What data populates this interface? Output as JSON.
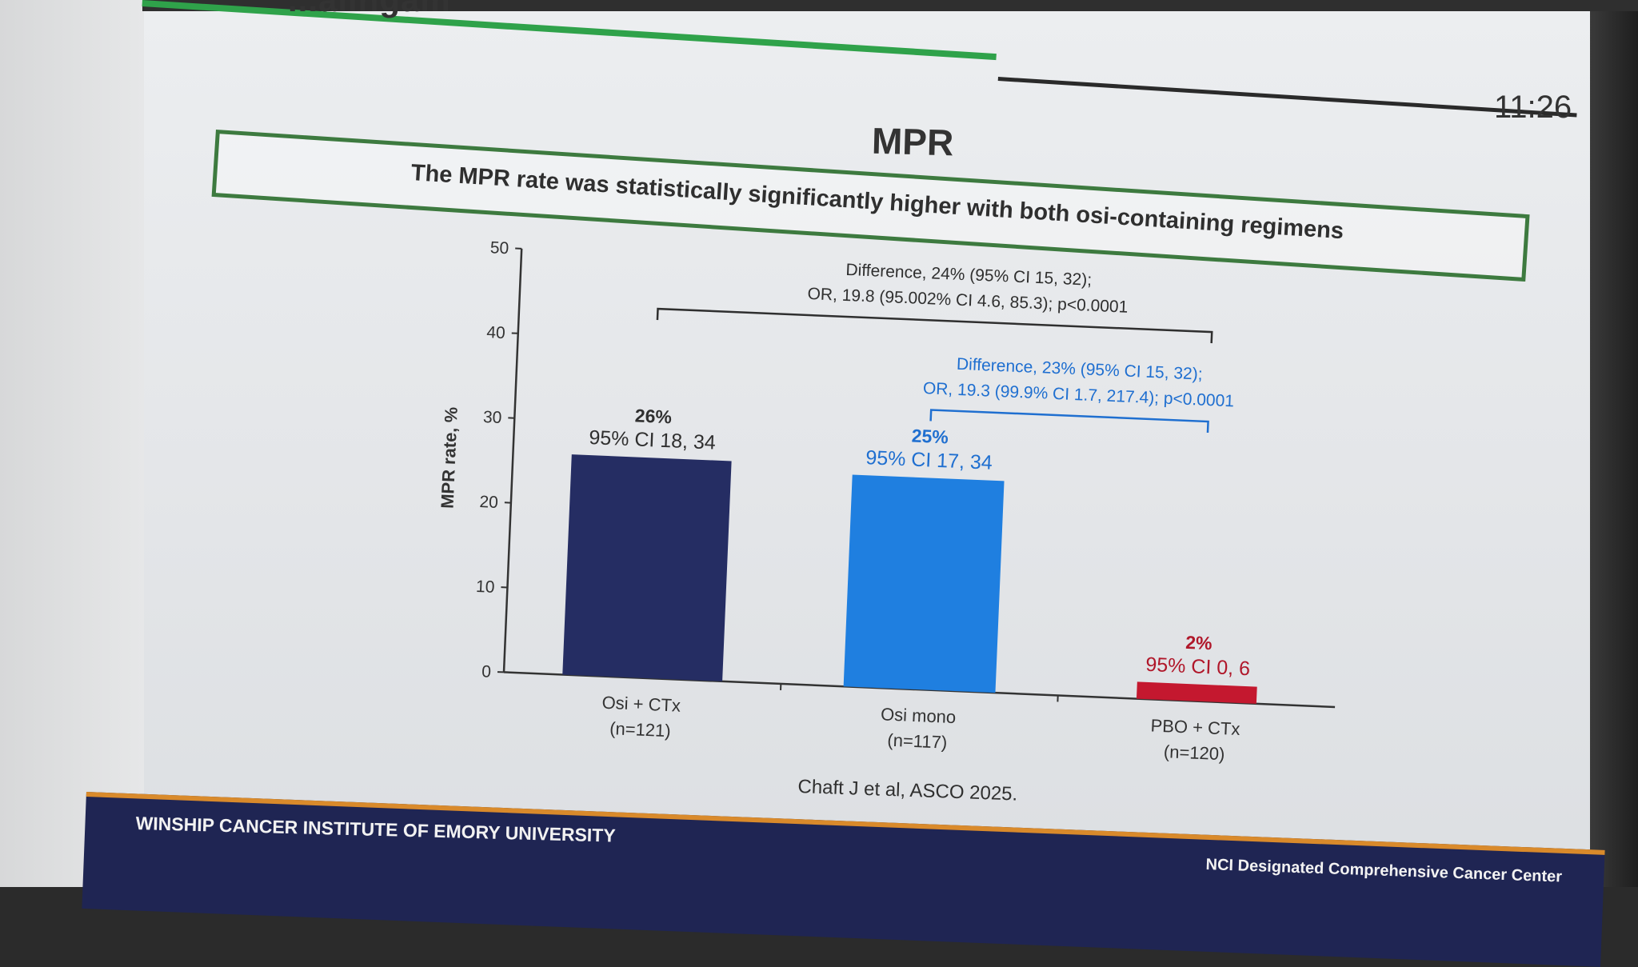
{
  "slide": {
    "header_partial": "...alingam",
    "clock": "11:26",
    "title": "MPR",
    "banner": "The MPR rate was statistically significantly higher with both osi-containing regimens",
    "citation": "Chaft J et al, ASCO 2025.",
    "footer_left": "WINSHIP CANCER INSTITUTE OF EMORY UNIVERSITY",
    "footer_right": "NCI Designated Comprehensive Cancer Center"
  },
  "chart_data": {
    "type": "bar",
    "ylabel": "MPR rate, %",
    "ylim": [
      0,
      50
    ],
    "yticks": [
      0,
      10,
      20,
      30,
      40,
      50
    ],
    "categories": [
      "Osi + CTx",
      "Osi mono",
      "PBO + CTx"
    ],
    "category_n": [
      "(n=121)",
      "(n=117)",
      "(n=120)"
    ],
    "values": [
      26,
      25,
      2
    ],
    "value_labels": [
      "26%",
      "25%",
      "2%"
    ],
    "ci_labels": [
      "95% CI 18, 34",
      "95% CI 17, 34",
      "95% CI 0, 6"
    ],
    "colors": [
      "#252d63",
      "#1f7fe0",
      "#c4182f"
    ],
    "label_colors": [
      "#2f2f2f",
      "#1f6fd0",
      "#b0172a"
    ],
    "comparisons": [
      {
        "line1": "Difference, 24% (95% CI 15, 32);",
        "line2": "OR, 19.8 (95.002% CI 4.6, 85.3); p<0.0001",
        "color": "#2f2f2f"
      },
      {
        "line1": "Difference, 23% (95% CI 15, 32);",
        "line2": "OR, 19.3 (99.9% CI 1.7, 217.4); p<0.0001",
        "color": "#1f6fd0"
      }
    ]
  }
}
